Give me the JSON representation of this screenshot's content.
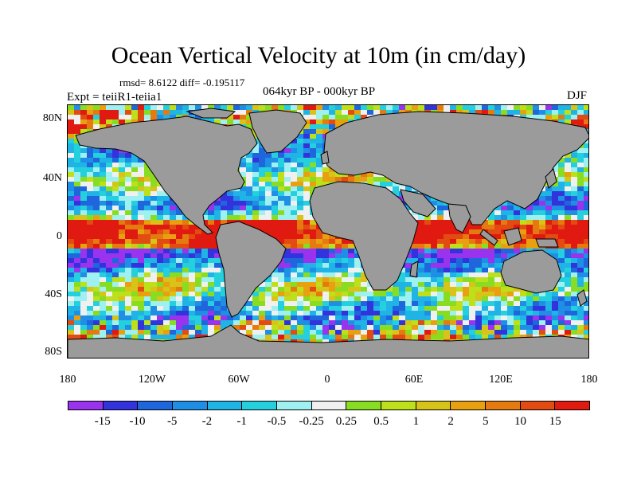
{
  "title": "Ocean Vertical Velocity at 10m (in cm/day)",
  "stats": "rmsd= 8.6122 diff= -0.195117",
  "experiment": "Expt = teiiR1-teiia1",
  "period": "064kyr BP - 000kyr BP",
  "season": "DJF",
  "lat_labels": [
    "80N",
    "40N",
    "0",
    "40S",
    "80S"
  ],
  "lon_labels": [
    "180",
    "120W",
    "60W",
    "0",
    "60E",
    "120E",
    "180"
  ],
  "colorbar": {
    "labels": [
      "-15",
      "-10",
      "-5",
      "-2",
      "-1",
      "-0.5",
      "-0.25",
      "0.25",
      "0.5",
      "1",
      "2",
      "5",
      "10",
      "15"
    ],
    "colors": [
      "#9933ee",
      "#3333dd",
      "#1f66dd",
      "#1f8fe6",
      "#20b3e6",
      "#24d0de",
      "#9ff0f0",
      "#f0f0f0",
      "#88dd22",
      "#bde01a",
      "#d8c418",
      "#e8a010",
      "#e57a10",
      "#e24b12",
      "#e01a10"
    ]
  },
  "land_color": "#9b9b9b"
}
